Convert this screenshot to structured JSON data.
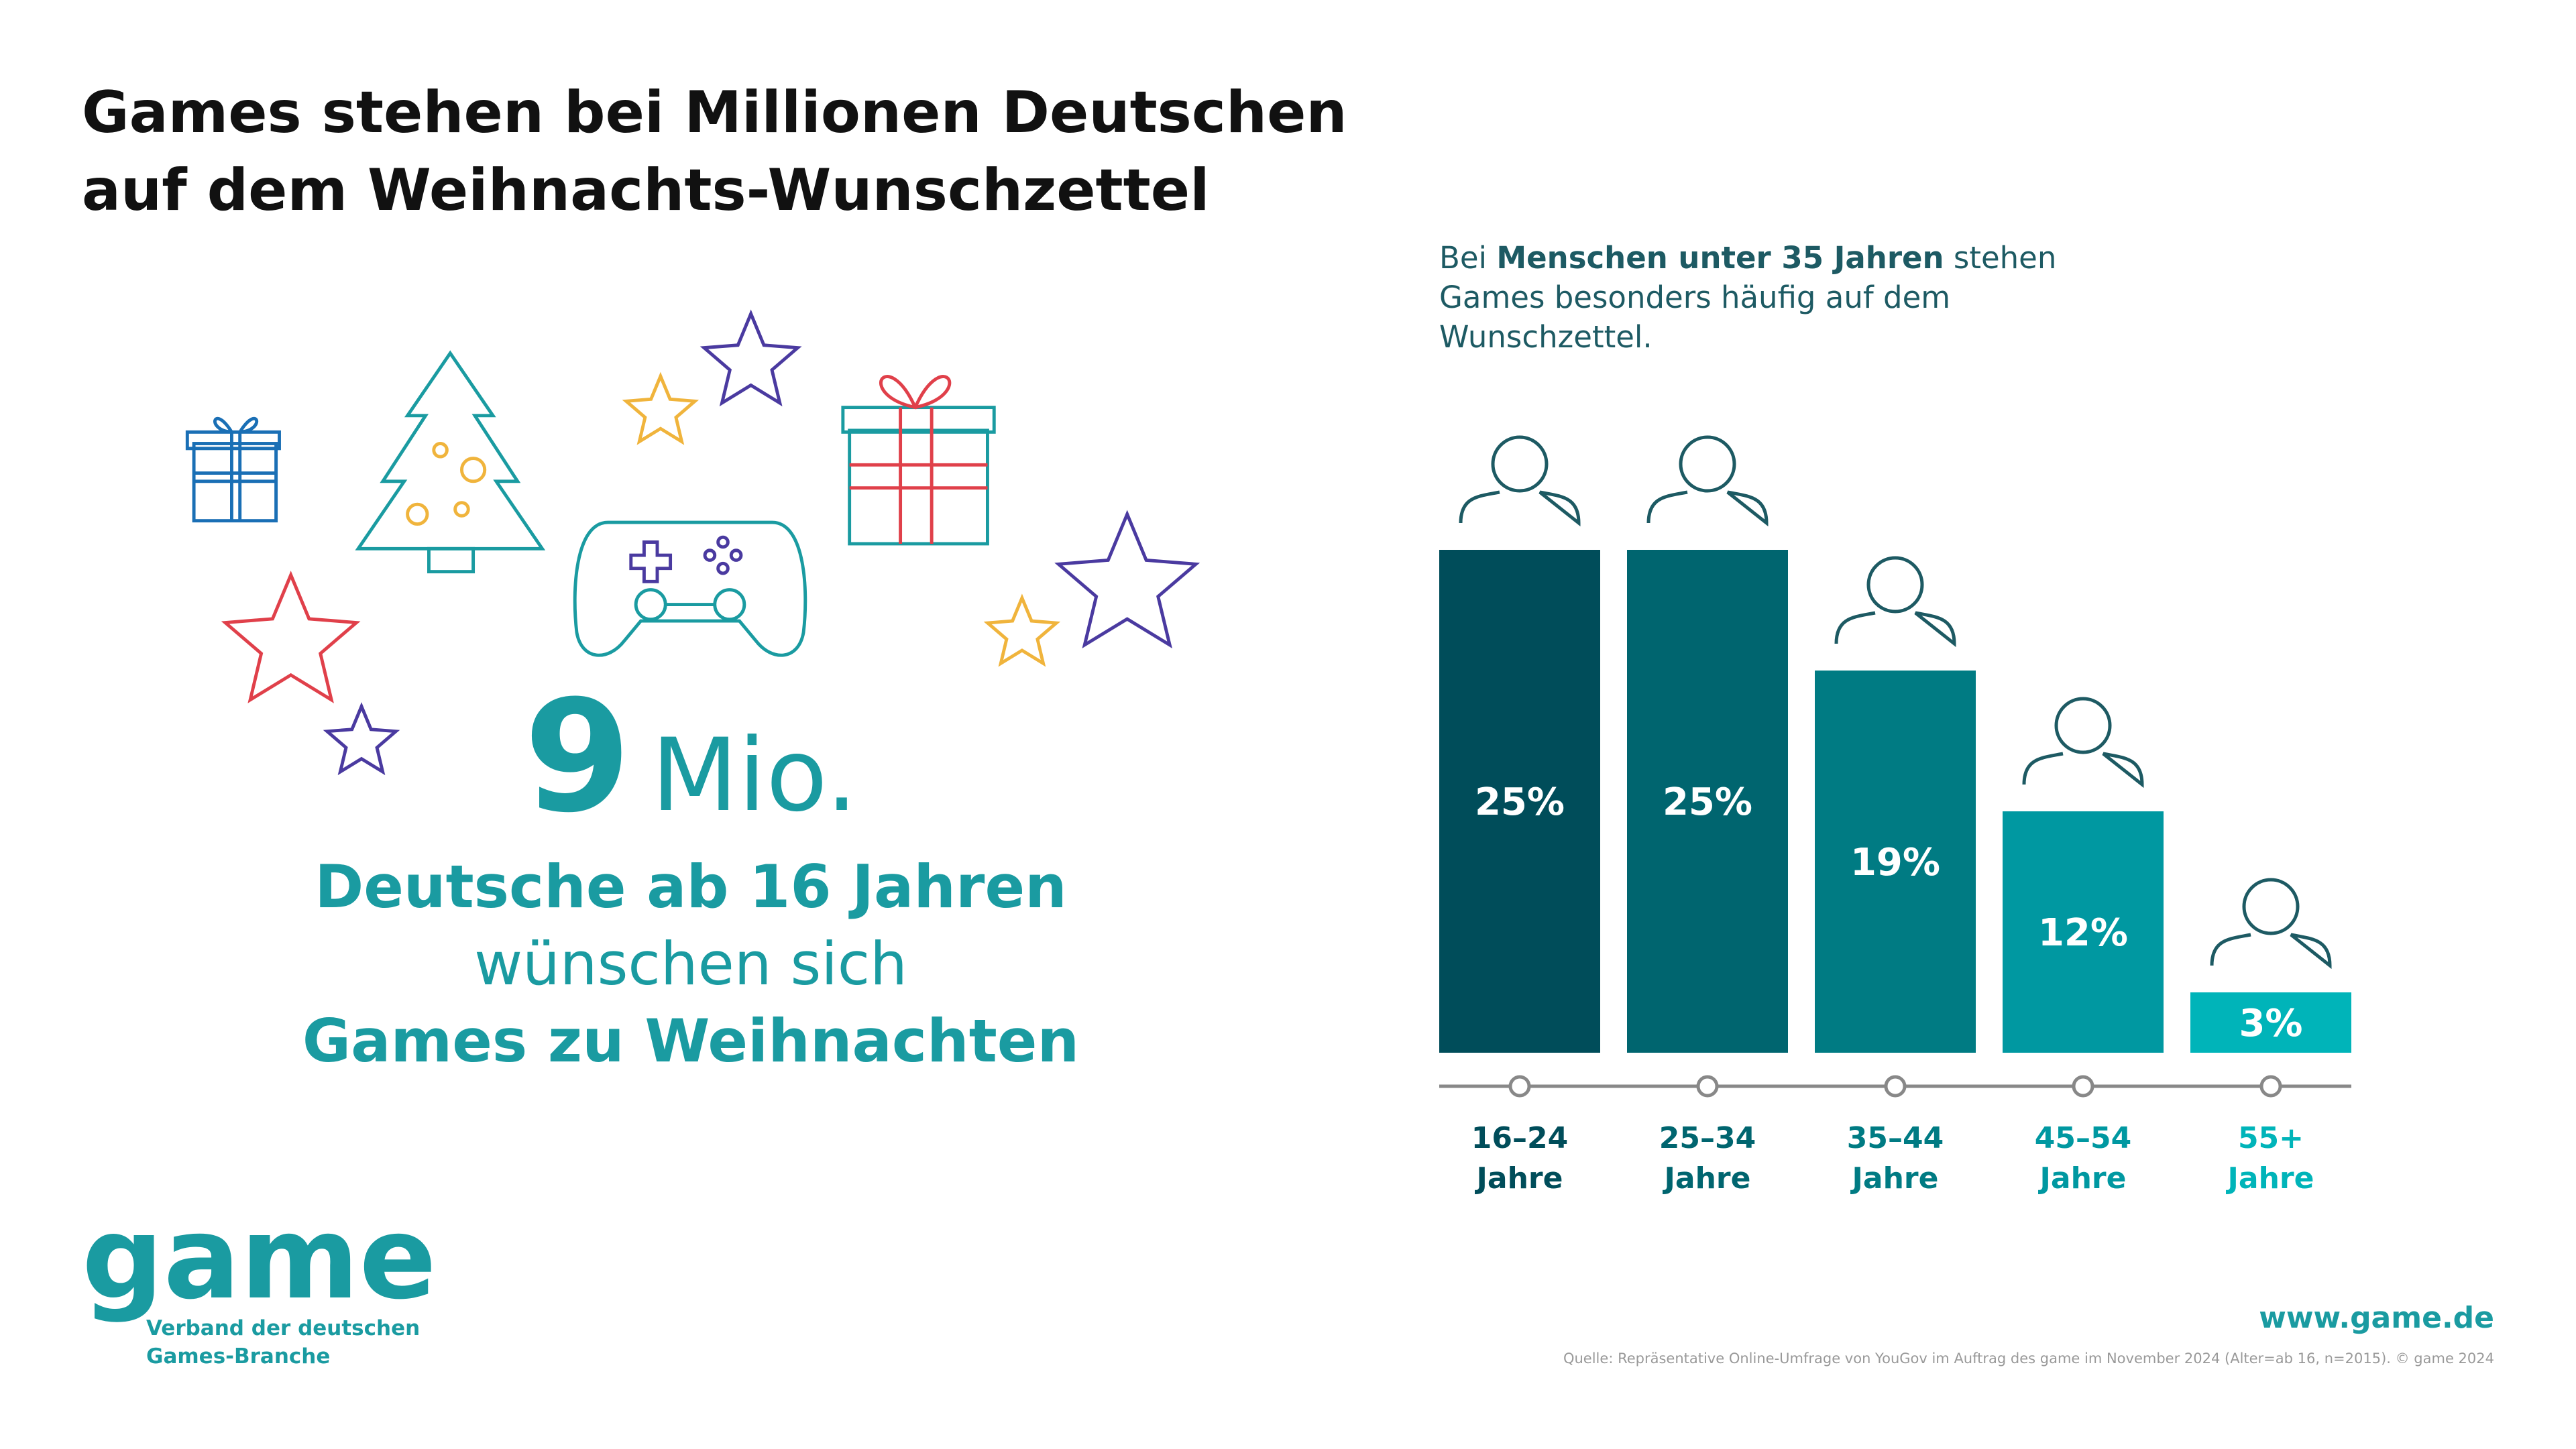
{
  "header": {
    "title": [
      "Games stehen bei Millionen Deutschen",
      "auf dem Weihnachts-Wunschzettel"
    ]
  },
  "stat": {
    "number": 9,
    "unit": "Mio.",
    "lines": [
      "Deutsche ab 16 Jahren",
      "wünschen sich",
      "Games zu Weihnachten"
    ]
  },
  "logo": {
    "name": "game",
    "lines": [
      "Verband der deutschen",
      "Games-Branche"
    ]
  },
  "footer": {
    "url": "www.game.de",
    "source": "Quelle: Repräsentative Online-Umfrage von YouGov im Auftrag des game im November 2024 (Alter=ab 16, n=2015). © game 2024"
  },
  "chart_data": {
    "type": "bar",
    "subtitle_parts": [
      "Bei",
      "Menschen unter 35 Jahren",
      "stehen Games besonders häufig auf dem Wunschzettel."
    ],
    "categories": [
      "16–24 Jahre",
      "25–34 Jahre",
      "35–44 Jahre",
      "45–54 Jahre",
      "55+ Jahre"
    ],
    "values": [
      25,
      25,
      19,
      12,
      3
    ],
    "value_labels": [
      "25%",
      "25%",
      "19%",
      "12%",
      "3%"
    ],
    "colors": [
      "#004d5a",
      "#00656f",
      "#007b83",
      "#0098a1",
      "#00b4b9"
    ]
  }
}
